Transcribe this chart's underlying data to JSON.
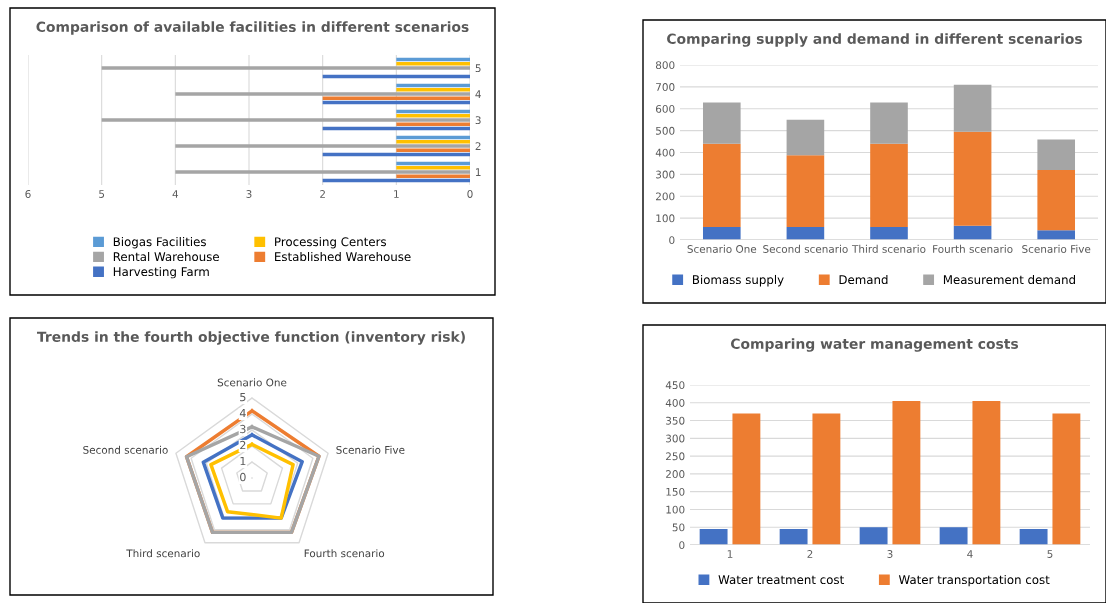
{
  "chart_data": [
    {
      "type": "bar",
      "orientation": "horizontal",
      "title": "Comparison of available facilities in different scenarios",
      "categories": [
        "5",
        "4",
        "3",
        "2",
        "1"
      ],
      "series": [
        {
          "name": "Biogas Facilities",
          "color": "#5b9bd5",
          "values": [
            1,
            1,
            1,
            1,
            1
          ]
        },
        {
          "name": "Processing Centers",
          "color": "#ffc000",
          "values": [
            1,
            1,
            1,
            1,
            1
          ]
        },
        {
          "name": "Rental Warehouse",
          "color": "#a5a5a5",
          "values": [
            5,
            4,
            5,
            4,
            4
          ]
        },
        {
          "name": "Established Warehouse",
          "color": "#ed7d31",
          "values": [
            0,
            2,
            1,
            1,
            1
          ]
        },
        {
          "name": "Harvesting Farm",
          "color": "#4472c4",
          "values": [
            2,
            2,
            2,
            2,
            2
          ]
        }
      ],
      "xlim": [
        6,
        0
      ],
      "xticks": [
        6,
        5,
        4,
        3,
        2,
        1,
        0
      ],
      "grid": "x",
      "legend": "bottom"
    },
    {
      "type": "bar",
      "stacked": true,
      "title": "Comparing supply and demand in different scenarios",
      "categories": [
        "Scenario One",
        "Second scenario",
        "Third scenario",
        "Fourth scenario",
        "Scenario Five"
      ],
      "series": [
        {
          "name": "Biomass supply",
          "color": "#4472c4",
          "values": [
            60,
            60,
            60,
            65,
            45
          ]
        },
        {
          "name": "Demand",
          "color": "#ed7d31",
          "values": [
            380,
            328,
            380,
            430,
            275
          ]
        },
        {
          "name": "Measurement demand",
          "color": "#a5a5a5",
          "values": [
            188,
            162,
            188,
            215,
            140
          ]
        }
      ],
      "ylim": [
        0,
        800
      ],
      "yticks": [
        0,
        100,
        200,
        300,
        400,
        500,
        600,
        700,
        800
      ],
      "grid": "y",
      "legend": "bottom"
    },
    {
      "type": "radar",
      "title": "Trends in the fourth objective function (inventory risk)",
      "categories": [
        "Scenario One",
        "Scenario Five",
        "Fourth scenario",
        "Third scenario",
        "Second scenario"
      ],
      "series": [
        {
          "color": "#ed7d31",
          "values": [
            4.2,
            4.4,
            4.2,
            4.2,
            4.3
          ]
        },
        {
          "color": "#a5a5a5",
          "values": [
            3.2,
            4.4,
            4.2,
            4.2,
            4.3
          ]
        },
        {
          "color": "#4472c4",
          "values": [
            2.7,
            3.3,
            3.1,
            3.1,
            3.2
          ]
        },
        {
          "color": "#ffc000",
          "values": [
            2.1,
            2.7,
            3.1,
            2.6,
            2.7
          ]
        }
      ],
      "ylim": [
        0,
        5
      ],
      "yticks": [
        0,
        1,
        2,
        3,
        4,
        5
      ],
      "grid": true
    },
    {
      "type": "bar",
      "title": "Comparing water management costs",
      "categories": [
        "1",
        "2",
        "3",
        "4",
        "5"
      ],
      "series": [
        {
          "name": "Water treatment cost",
          "color": "#4472c4",
          "values": [
            45,
            45,
            50,
            50,
            45
          ]
        },
        {
          "name": "Water transportation cost",
          "color": "#ed7d31",
          "values": [
            370,
            370,
            405,
            405,
            370
          ]
        }
      ],
      "ylim": [
        0,
        450
      ],
      "yticks": [
        0,
        50,
        100,
        150,
        200,
        250,
        300,
        350,
        400,
        450
      ],
      "grid": "y",
      "legend": "bottom"
    }
  ]
}
